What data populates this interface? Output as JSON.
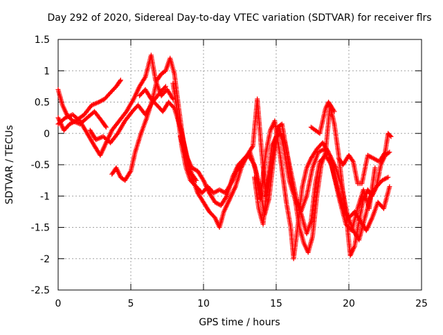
{
  "chart_data": {
    "type": "scatter",
    "title": "Day 292 of 2020, Sidereal Day-to-day VTEC variation (SDTVAR) for receiver flrs",
    "xlabel": "GPS time / hours",
    "ylabel": "SDTVAR / TECUs",
    "xlim": [
      0,
      25
    ],
    "ylim": [
      -2.5,
      1.5
    ],
    "xticks": [
      0,
      5,
      10,
      15,
      20,
      25
    ],
    "yticks": [
      -2.5,
      -2,
      -1.5,
      -1,
      -0.5,
      0,
      0.5,
      1,
      1.5
    ],
    "grid": true,
    "marker": "+",
    "color": "#ff0000",
    "series": [
      {
        "values": [
          [
            0.0,
            0.7
          ],
          [
            0.3,
            0.45
          ],
          [
            0.6,
            0.3
          ],
          [
            1.0,
            0.2
          ],
          [
            1.5,
            0.15
          ],
          [
            2.0,
            0.25
          ],
          [
            2.5,
            0.35
          ],
          [
            3.0,
            0.2
          ],
          [
            3.3,
            0.1
          ]
        ]
      },
      {
        "values": [
          [
            0.0,
            0.25
          ],
          [
            0.4,
            0.05
          ],
          [
            0.8,
            0.15
          ],
          [
            1.2,
            0.2
          ],
          [
            1.8,
            0.3
          ],
          [
            2.3,
            0.45
          ],
          [
            2.8,
            0.5
          ],
          [
            3.2,
            0.55
          ],
          [
            3.6,
            0.65
          ],
          [
            4.0,
            0.75
          ],
          [
            4.3,
            0.85
          ]
        ]
      },
      {
        "values": [
          [
            0.0,
            0.15
          ],
          [
            0.5,
            0.25
          ],
          [
            1.0,
            0.3
          ],
          [
            1.5,
            0.2
          ],
          [
            2.0,
            0.0
          ],
          [
            2.5,
            -0.2
          ],
          [
            2.9,
            -0.35
          ],
          [
            3.3,
            -0.15
          ],
          [
            3.7,
            0.05
          ],
          [
            4.2,
            0.2
          ],
          [
            4.7,
            0.35
          ],
          [
            5.2,
            0.55
          ],
          [
            5.6,
            0.75
          ],
          [
            6.0,
            0.9
          ],
          [
            6.4,
            1.25
          ],
          [
            6.7,
            0.85
          ],
          [
            7.1,
            0.6
          ],
          [
            7.5,
            0.7
          ],
          [
            7.9,
            0.55
          ]
        ]
      },
      {
        "values": [
          [
            2.2,
            0.05
          ],
          [
            2.6,
            -0.1
          ],
          [
            3.1,
            -0.05
          ],
          [
            3.6,
            -0.15
          ],
          [
            4.1,
            0.0
          ],
          [
            4.6,
            0.2
          ],
          [
            5.1,
            0.35
          ],
          [
            5.5,
            0.45
          ],
          [
            6.0,
            0.3
          ],
          [
            6.5,
            0.5
          ],
          [
            7.0,
            0.65
          ],
          [
            7.4,
            0.75
          ]
        ]
      },
      {
        "values": [
          [
            3.7,
            -0.65
          ],
          [
            4.0,
            -0.55
          ],
          [
            4.3,
            -0.7
          ],
          [
            4.6,
            -0.75
          ],
          [
            5.0,
            -0.6
          ],
          [
            5.3,
            -0.3
          ],
          [
            5.7,
            0.0
          ],
          [
            6.1,
            0.25
          ],
          [
            6.5,
            0.55
          ],
          [
            6.8,
            0.85
          ],
          [
            7.1,
            0.95
          ],
          [
            7.4,
            1.0
          ],
          [
            7.7,
            1.2
          ],
          [
            8.0,
            0.95
          ],
          [
            8.3,
            0.4
          ],
          [
            8.6,
            -0.1
          ],
          [
            8.9,
            -0.45
          ],
          [
            9.2,
            -0.65
          ],
          [
            9.5,
            -0.75
          ]
        ]
      },
      {
        "values": [
          [
            5.6,
            0.6
          ],
          [
            6.0,
            0.7
          ],
          [
            6.4,
            0.55
          ],
          [
            6.8,
            0.45
          ],
          [
            7.2,
            0.35
          ],
          [
            7.6,
            0.5
          ],
          [
            8.0,
            0.4
          ],
          [
            8.4,
            0.1
          ],
          [
            8.8,
            -0.3
          ],
          [
            9.2,
            -0.7
          ],
          [
            9.6,
            -0.95
          ],
          [
            10.0,
            -1.1
          ],
          [
            10.4,
            -1.25
          ],
          [
            10.8,
            -1.35
          ],
          [
            11.1,
            -1.5
          ],
          [
            11.4,
            -1.25
          ],
          [
            11.8,
            -1.05
          ],
          [
            12.2,
            -0.85
          ],
          [
            12.6,
            -0.55
          ],
          [
            13.0,
            -0.35
          ],
          [
            13.4,
            -0.2
          ],
          [
            13.7,
            0.55
          ],
          [
            14.0,
            -0.3
          ],
          [
            14.3,
            -1.0
          ],
          [
            14.6,
            -0.6
          ],
          [
            14.9,
            -0.15
          ],
          [
            15.2,
            0.1
          ],
          [
            15.5,
            -0.2
          ],
          [
            15.9,
            -0.75
          ],
          [
            16.3,
            -1.05
          ],
          [
            16.7,
            -1.25
          ],
          [
            17.1,
            -1.0
          ],
          [
            17.5,
            -0.55
          ],
          [
            17.9,
            -0.3
          ],
          [
            18.3,
            -0.25
          ],
          [
            18.7,
            -0.35
          ],
          [
            19.1,
            -0.55
          ],
          [
            19.5,
            -0.85
          ],
          [
            19.9,
            -1.3
          ],
          [
            20.3,
            -1.55
          ],
          [
            20.7,
            -1.7
          ],
          [
            21.1,
            -1.35
          ],
          [
            21.5,
            -1.0
          ],
          [
            21.9,
            -0.85
          ],
          [
            22.3,
            -0.75
          ],
          [
            22.7,
            -0.7
          ]
        ]
      },
      {
        "values": [
          [
            7.9,
            0.8
          ],
          [
            8.2,
            0.35
          ],
          [
            8.5,
            -0.2
          ],
          [
            8.8,
            -0.55
          ],
          [
            9.1,
            -0.75
          ],
          [
            9.5,
            -0.85
          ],
          [
            9.9,
            -0.95
          ],
          [
            10.3,
            -0.85
          ],
          [
            10.7,
            -0.95
          ],
          [
            11.1,
            -0.9
          ],
          [
            11.5,
            -0.95
          ],
          [
            11.9,
            -0.8
          ],
          [
            12.3,
            -0.6
          ],
          [
            12.7,
            -0.45
          ],
          [
            13.1,
            -0.35
          ],
          [
            13.5,
            -0.5
          ],
          [
            13.9,
            -0.9
          ],
          [
            14.2,
            -1.3
          ],
          [
            14.5,
            -1.05
          ],
          [
            14.8,
            -0.45
          ],
          [
            15.1,
            0.1
          ],
          [
            15.4,
            0.15
          ],
          [
            15.7,
            -0.25
          ],
          [
            16.0,
            -0.7
          ],
          [
            16.3,
            -1.05
          ],
          [
            16.6,
            -1.5
          ],
          [
            16.9,
            -1.75
          ],
          [
            17.2,
            -1.9
          ],
          [
            17.5,
            -1.65
          ],
          [
            17.8,
            -1.0
          ],
          [
            18.1,
            -0.5
          ],
          [
            18.4,
            -0.3
          ],
          [
            18.7,
            0.45
          ],
          [
            19.0,
            0.15
          ],
          [
            19.3,
            -0.35
          ],
          [
            19.6,
            -0.95
          ],
          [
            19.9,
            -1.5
          ],
          [
            20.1,
            -1.95
          ],
          [
            20.4,
            -1.8
          ],
          [
            20.7,
            -1.4
          ],
          [
            21.0,
            -1.05
          ],
          [
            21.3,
            -0.9
          ],
          [
            21.6,
            -1.0
          ],
          [
            21.9,
            -0.85
          ],
          [
            22.2,
            -0.5
          ],
          [
            22.5,
            -0.35
          ],
          [
            22.8,
            -0.3
          ]
        ]
      },
      {
        "values": [
          [
            8.4,
            -0.05
          ],
          [
            8.8,
            -0.35
          ],
          [
            9.2,
            -0.55
          ],
          [
            9.6,
            -0.6
          ],
          [
            10.0,
            -0.75
          ],
          [
            10.4,
            -0.95
          ],
          [
            10.8,
            -1.1
          ],
          [
            11.2,
            -1.15
          ],
          [
            11.6,
            -1.0
          ],
          [
            12.0,
            -0.7
          ],
          [
            12.4,
            -0.5
          ],
          [
            12.8,
            -0.4
          ],
          [
            13.2,
            -0.3
          ],
          [
            13.6,
            -0.6
          ],
          [
            13.9,
            -1.05
          ],
          [
            14.3,
            -0.3
          ],
          [
            14.6,
            0.05
          ],
          [
            14.9,
            0.2
          ],
          [
            15.3,
            -0.4
          ],
          [
            15.7,
            -1.1
          ],
          [
            16.0,
            -1.5
          ],
          [
            16.2,
            -2.0
          ],
          [
            16.5,
            -1.45
          ],
          [
            16.8,
            -0.85
          ],
          [
            17.1,
            -0.55
          ],
          [
            17.4,
            -0.4
          ],
          [
            17.8,
            -0.25
          ],
          [
            18.2,
            -0.15
          ],
          [
            18.6,
            -0.3
          ],
          [
            19.0,
            -0.7
          ],
          [
            19.4,
            -1.1
          ],
          [
            19.8,
            -1.45
          ],
          [
            20.2,
            -1.55
          ],
          [
            20.6,
            -1.2
          ],
          [
            21.0,
            -0.9
          ],
          [
            21.4,
            -1.2
          ],
          [
            21.8,
            -0.55
          ]
        ]
      },
      {
        "values": [
          [
            13.5,
            -0.7
          ],
          [
            13.8,
            -1.2
          ],
          [
            14.1,
            -1.45
          ],
          [
            14.4,
            -0.8
          ],
          [
            14.7,
            -0.2
          ],
          [
            15.0,
            -0.05
          ],
          [
            15.3,
            0.0
          ],
          [
            15.6,
            -0.15
          ],
          [
            16.0,
            -0.6
          ],
          [
            16.4,
            -1.05
          ],
          [
            16.8,
            -1.35
          ],
          [
            17.1,
            -1.6
          ],
          [
            17.4,
            -1.4
          ],
          [
            17.7,
            -0.8
          ],
          [
            18.0,
            -0.45
          ],
          [
            18.4,
            -0.35
          ],
          [
            18.8,
            -0.5
          ],
          [
            19.2,
            -0.85
          ],
          [
            19.6,
            -1.2
          ],
          [
            20.0,
            -1.35
          ],
          [
            20.4,
            -1.25
          ],
          [
            20.8,
            -1.4
          ],
          [
            21.2,
            -1.55
          ],
          [
            21.6,
            -1.35
          ],
          [
            22.0,
            -1.1
          ],
          [
            22.4,
            -1.2
          ],
          [
            22.8,
            -0.85
          ]
        ]
      },
      {
        "values": [
          [
            17.4,
            0.1
          ],
          [
            17.7,
            0.05
          ],
          [
            18.0,
            0.0
          ],
          [
            18.4,
            0.4
          ],
          [
            18.6,
            0.5
          ],
          [
            19.0,
            0.35
          ]
        ]
      },
      {
        "values": [
          [
            19.3,
            -0.4
          ],
          [
            19.6,
            -0.5
          ],
          [
            20.0,
            -0.35
          ],
          [
            20.3,
            -0.45
          ],
          [
            20.6,
            -0.8
          ],
          [
            20.9,
            -0.8
          ],
          [
            21.3,
            -0.35
          ],
          [
            21.7,
            -0.4
          ],
          [
            22.1,
            -0.45
          ],
          [
            22.5,
            -0.3
          ],
          [
            22.7,
            0.0
          ],
          [
            22.9,
            -0.05
          ]
        ]
      }
    ]
  }
}
